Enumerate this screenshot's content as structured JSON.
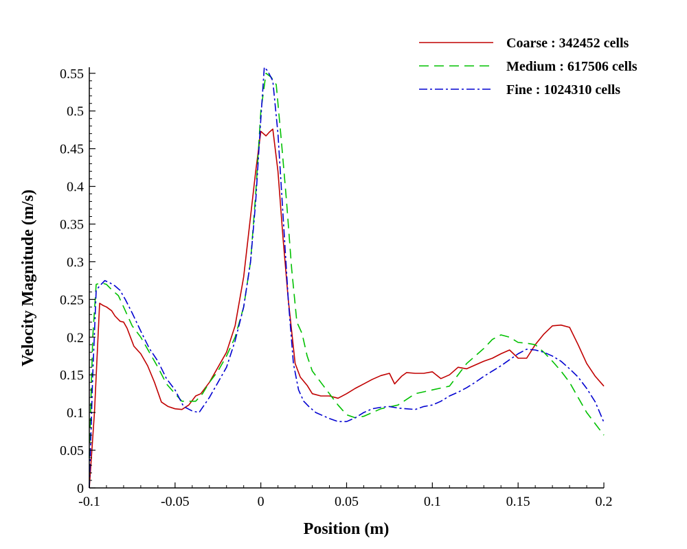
{
  "chart_data": {
    "type": "line",
    "title": "",
    "xlabel": "Position (m)",
    "ylabel": "Velocity Magnitude (m/s)",
    "xlim": [
      -0.1,
      0.2
    ],
    "ylim": [
      0,
      0.56
    ],
    "xticks": [
      -0.1,
      -0.05,
      0,
      0.05,
      0.1,
      0.15,
      0.2
    ],
    "xtick_labels": [
      "-0.1",
      "-0.05",
      "0",
      "0.05",
      "0.1",
      "0.15",
      "0.2"
    ],
    "yticks": [
      0,
      0.05,
      0.1,
      0.15,
      0.2,
      0.25,
      0.3,
      0.35,
      0.4,
      0.45,
      0.5,
      0.55
    ],
    "ytick_labels": [
      "0",
      "0.05",
      "0.1",
      "0.15",
      "0.2",
      "0.25",
      "0.3",
      "0.35",
      "0.4",
      "0.45",
      "0.5",
      "0.55"
    ],
    "grid": false,
    "legend_position": "top-right",
    "series": [
      {
        "name": "Coarse : 342452 cells",
        "color": "#c00000",
        "dash": "solid",
        "x": [
          -0.1,
          -0.097,
          -0.094,
          -0.092,
          -0.09,
          -0.087,
          -0.085,
          -0.082,
          -0.08,
          -0.078,
          -0.076,
          -0.074,
          -0.07,
          -0.066,
          -0.062,
          -0.058,
          -0.054,
          -0.05,
          -0.046,
          -0.042,
          -0.038,
          -0.035,
          -0.03,
          -0.025,
          -0.02,
          -0.015,
          -0.01,
          -0.006,
          -0.003,
          0,
          0.003,
          0.005,
          0.007,
          0.01,
          0.013,
          0.016,
          0.02,
          0.023,
          0.027,
          0.03,
          0.035,
          0.04,
          0.045,
          0.05,
          0.055,
          0.06,
          0.065,
          0.07,
          0.075,
          0.078,
          0.082,
          0.085,
          0.09,
          0.095,
          0.1,
          0.105,
          0.11,
          0.115,
          0.12,
          0.125,
          0.13,
          0.135,
          0.14,
          0.145,
          0.15,
          0.155,
          0.16,
          0.165,
          0.17,
          0.175,
          0.18,
          0.185,
          0.19,
          0.195,
          0.2
        ],
        "y": [
          0.0,
          0.1,
          0.245,
          0.242,
          0.24,
          0.235,
          0.228,
          0.221,
          0.22,
          0.212,
          0.2,
          0.188,
          0.178,
          0.162,
          0.14,
          0.114,
          0.108,
          0.105,
          0.104,
          0.11,
          0.122,
          0.125,
          0.14,
          0.16,
          0.18,
          0.215,
          0.28,
          0.36,
          0.42,
          0.473,
          0.467,
          0.472,
          0.476,
          0.42,
          0.33,
          0.25,
          0.165,
          0.147,
          0.136,
          0.125,
          0.122,
          0.122,
          0.119,
          0.125,
          0.132,
          0.138,
          0.144,
          0.149,
          0.152,
          0.138,
          0.148,
          0.153,
          0.152,
          0.152,
          0.154,
          0.145,
          0.15,
          0.16,
          0.158,
          0.163,
          0.168,
          0.172,
          0.178,
          0.183,
          0.172,
          0.172,
          0.19,
          0.204,
          0.215,
          0.216,
          0.213,
          0.19,
          0.165,
          0.148,
          0.135
        ]
      },
      {
        "name": "Medium : 617506 cells",
        "color": "#00c000",
        "dash": "dashed",
        "x": [
          -0.1,
          -0.098,
          -0.096,
          -0.093,
          -0.09,
          -0.087,
          -0.083,
          -0.08,
          -0.075,
          -0.07,
          -0.065,
          -0.06,
          -0.055,
          -0.05,
          -0.046,
          -0.042,
          -0.038,
          -0.034,
          -0.03,
          -0.025,
          -0.02,
          -0.015,
          -0.01,
          -0.006,
          -0.003,
          0,
          0.003,
          0.006,
          0.009,
          0.012,
          0.015,
          0.018,
          0.021,
          0.024,
          0.027,
          0.03,
          0.035,
          0.04,
          0.045,
          0.05,
          0.055,
          0.06,
          0.07,
          0.08,
          0.09,
          0.1,
          0.11,
          0.12,
          0.13,
          0.135,
          0.14,
          0.145,
          0.15,
          0.155,
          0.16,
          0.165,
          0.17,
          0.175,
          0.18,
          0.185,
          0.19,
          0.195,
          0.2
        ],
        "y": [
          0.04,
          0.2,
          0.27,
          0.272,
          0.27,
          0.263,
          0.255,
          0.24,
          0.215,
          0.2,
          0.18,
          0.16,
          0.138,
          0.125,
          0.115,
          0.115,
          0.115,
          0.125,
          0.14,
          0.155,
          0.175,
          0.2,
          0.24,
          0.3,
          0.39,
          0.5,
          0.55,
          0.545,
          0.535,
          0.46,
          0.38,
          0.29,
          0.22,
          0.205,
          0.175,
          0.155,
          0.14,
          0.125,
          0.11,
          0.097,
          0.093,
          0.095,
          0.105,
          0.11,
          0.125,
          0.13,
          0.135,
          0.165,
          0.185,
          0.197,
          0.203,
          0.2,
          0.193,
          0.192,
          0.19,
          0.18,
          0.168,
          0.155,
          0.14,
          0.12,
          0.1,
          0.085,
          0.07
        ]
      },
      {
        "name": "Fine : 1024310 cells",
        "color": "#0000d0",
        "dash": "dashdot",
        "x": [
          -0.1,
          -0.098,
          -0.096,
          -0.094,
          -0.091,
          -0.088,
          -0.085,
          -0.082,
          -0.079,
          -0.075,
          -0.07,
          -0.065,
          -0.06,
          -0.055,
          -0.05,
          -0.045,
          -0.04,
          -0.036,
          -0.03,
          -0.025,
          -0.02,
          -0.015,
          -0.01,
          -0.006,
          -0.003,
          0,
          0.002,
          0.004,
          0.007,
          0.01,
          0.013,
          0.016,
          0.019,
          0.022,
          0.025,
          0.028,
          0.032,
          0.036,
          0.04,
          0.045,
          0.05,
          0.055,
          0.06,
          0.065,
          0.07,
          0.075,
          0.08,
          0.085,
          0.09,
          0.095,
          0.1,
          0.105,
          0.11,
          0.115,
          0.12,
          0.125,
          0.13,
          0.135,
          0.14,
          0.145,
          0.15,
          0.155,
          0.16,
          0.165,
          0.17,
          0.175,
          0.18,
          0.185,
          0.19,
          0.195,
          0.2
        ],
        "y": [
          0.0,
          0.15,
          0.262,
          0.268,
          0.275,
          0.272,
          0.268,
          0.262,
          0.25,
          0.232,
          0.208,
          0.185,
          0.168,
          0.145,
          0.13,
          0.108,
          0.102,
          0.1,
          0.12,
          0.14,
          0.16,
          0.195,
          0.24,
          0.3,
          0.38,
          0.49,
          0.558,
          0.553,
          0.54,
          0.47,
          0.36,
          0.25,
          0.165,
          0.13,
          0.115,
          0.108,
          0.1,
          0.096,
          0.092,
          0.088,
          0.088,
          0.093,
          0.1,
          0.105,
          0.107,
          0.108,
          0.106,
          0.105,
          0.104,
          0.108,
          0.11,
          0.115,
          0.122,
          0.127,
          0.133,
          0.14,
          0.148,
          0.155,
          0.162,
          0.17,
          0.178,
          0.184,
          0.183,
          0.18,
          0.175,
          0.168,
          0.158,
          0.147,
          0.132,
          0.114,
          0.087
        ]
      }
    ]
  }
}
